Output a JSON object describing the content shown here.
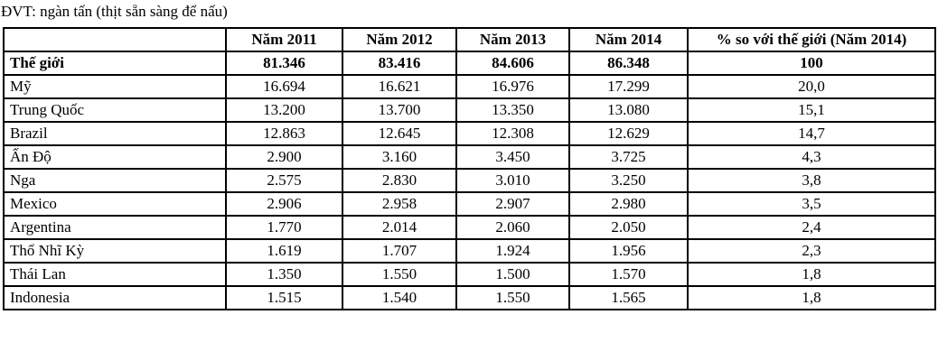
{
  "unit_note": "ĐVT: ngàn tấn (thịt sẵn sàng để nấu)",
  "table": {
    "headers": [
      "",
      "Năm 2011",
      "Năm 2012",
      "Năm 2013",
      "Năm 2014",
      "% so với thế giới (Năm 2014)"
    ],
    "world_row": [
      "Thế giới",
      "81.346",
      "83.416",
      "84.606",
      "86.348",
      "100"
    ],
    "rows": [
      [
        "Mỹ",
        "16.694",
        "16.621",
        "16.976",
        "17.299",
        "20,0"
      ],
      [
        "Trung Quốc",
        "13.200",
        "13.700",
        "13.350",
        "13.080",
        "15,1"
      ],
      [
        "Brazil",
        "12.863",
        "12.645",
        "12.308",
        "12.629",
        "14,7"
      ],
      [
        "Ấn Độ",
        "2.900",
        "3.160",
        "3.450",
        "3.725",
        "4,3"
      ],
      [
        "Nga",
        "2.575",
        "2.830",
        "3.010",
        "3.250",
        "3,8"
      ],
      [
        "Mexico",
        "2.906",
        "2.958",
        "2.907",
        "2.980",
        "3,5"
      ],
      [
        "Argentina",
        "1.770",
        "2.014",
        "2.060",
        "2.050",
        "2,4"
      ],
      [
        "Thổ Nhĩ Kỳ",
        "1.619",
        "1.707",
        "1.924",
        "1.956",
        "2,3"
      ],
      [
        "Thái Lan",
        "1.350",
        "1.550",
        "1.500",
        "1.570",
        "1,8"
      ],
      [
        "Indonesia",
        "1.515",
        "1.540",
        "1.550",
        "1.565",
        "1,8"
      ]
    ]
  }
}
